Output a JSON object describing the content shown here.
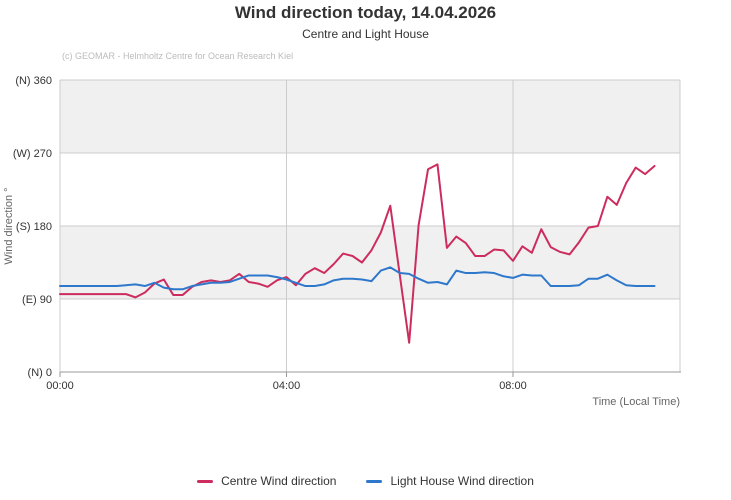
{
  "header": {
    "title": "Wind direction today, 14.04.2026",
    "subtitle": "Centre and Light House",
    "credits": "(c) GEOMAR - Helmholtz Centre for Ocean Research Kiel"
  },
  "chart_data": {
    "type": "line",
    "title": "Wind direction today, 14.04.2026",
    "subtitle": "Centre and Light House",
    "xlabel": "Time (Local Time)",
    "ylabel": "Wind direction °",
    "ylim": [
      0,
      360
    ],
    "xlim_hours": [
      0,
      10.95
    ],
    "grid": true,
    "legend_position": "bottom-center",
    "x_ticks": [
      {
        "hour": 0,
        "label": "00:00"
      },
      {
        "hour": 4,
        "label": "04:00"
      },
      {
        "hour": 8,
        "label": "08:00"
      }
    ],
    "y_ticks": [
      {
        "value": 0,
        "label": "(N) 0"
      },
      {
        "value": 90,
        "label": "(E) 90"
      },
      {
        "value": 180,
        "label": "(S) 180"
      },
      {
        "value": 270,
        "label": "(W) 270"
      },
      {
        "value": 360,
        "label": "(N) 360"
      }
    ],
    "shaded_bands_deg": [
      {
        "from": 270,
        "to": 360
      },
      {
        "from": 90,
        "to": 180
      }
    ],
    "sample_interval_minutes": 10,
    "start_time": "00:00",
    "end_time": "10:30",
    "series": [
      {
        "name": "Centre Wind direction",
        "color": "#cc2d5e",
        "values": [
          96,
          96,
          96,
          96,
          96,
          96,
          96,
          96,
          92,
          98,
          109,
          114,
          95,
          95,
          105,
          111,
          113,
          111,
          113,
          121,
          111,
          109,
          105,
          113,
          117,
          107,
          121,
          128,
          122,
          133,
          146,
          143,
          135,
          150,
          172,
          205,
          120,
          36,
          181,
          250,
          256,
          153,
          167,
          159,
          143,
          143,
          151,
          150,
          137,
          155,
          147,
          176,
          154,
          148,
          145,
          160,
          178,
          180,
          216,
          206,
          233,
          252,
          244,
          254
        ]
      },
      {
        "name": "Light House Wind direction",
        "color": "#2e78cc",
        "values": [
          106,
          106,
          106,
          106,
          106,
          106,
          106,
          107,
          108,
          106,
          110,
          104,
          102,
          102,
          106,
          108,
          110,
          110,
          111,
          115,
          119,
          119,
          119,
          117,
          114,
          110,
          106,
          106,
          108,
          113,
          115,
          115,
          114,
          112,
          125,
          129,
          122,
          121,
          115,
          110,
          111,
          108,
          125,
          122,
          122,
          123,
          122,
          118,
          116,
          120,
          119,
          119,
          106,
          106,
          106,
          107,
          115,
          115,
          120,
          113,
          107,
          106,
          106,
          106
        ]
      }
    ]
  },
  "legend": {
    "items": [
      {
        "label": "Centre Wind direction",
        "color": "#cc2d5e"
      },
      {
        "label": "Light House Wind direction",
        "color": "#2e78cc"
      }
    ]
  },
  "colors": {
    "background": "#ffffff",
    "band": "#f0f0f0",
    "grid": "#cccccc",
    "axis_line": "#999999",
    "tick_text": "#333333",
    "axis_title_text": "#666666",
    "credits_text": "#bbbbbb"
  }
}
